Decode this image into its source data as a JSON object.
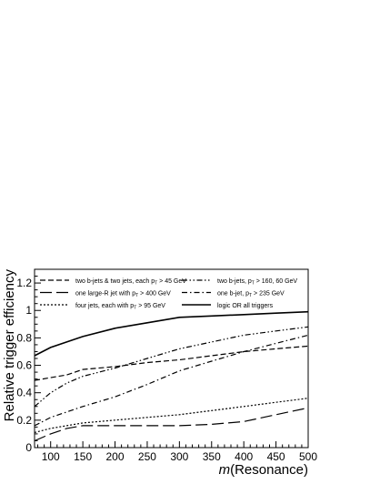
{
  "chart_data": {
    "type": "line",
    "xlabel_italic": "m",
    "xlabel_rest": "(Resonance)",
    "ylabel": "Relative trigger efficiency",
    "xlim": [
      75,
      500
    ],
    "ylim": [
      0,
      1.3
    ],
    "xticks": [
      100,
      150,
      200,
      250,
      300,
      350,
      400,
      450,
      500
    ],
    "yticks": [
      0,
      0.2,
      0.4,
      0.6,
      0.8,
      1,
      1.2
    ],
    "ytick_labels": [
      "0",
      "0.2",
      "0.4",
      "0.6",
      "0.8",
      "1",
      "1.2"
    ],
    "grid": false,
    "legend_position": "top",
    "series": [
      {
        "name": "two b-jets & two jets, each p_T > 45 GeV",
        "legend_main": "two b-jets & two jets, each p",
        "legend_sub": "T",
        "legend_tail": " > 45 GeV",
        "style": "dashed",
        "x": [
          75,
          100,
          125,
          150,
          200,
          250,
          300,
          350,
          400,
          450,
          500
        ],
        "values": [
          0.49,
          0.51,
          0.53,
          0.57,
          0.59,
          0.62,
          0.64,
          0.67,
          0.7,
          0.72,
          0.74
        ]
      },
      {
        "name": "one large-R jet with p_T > 400 GeV",
        "legend_main": "one large-R jet with p",
        "legend_sub": "T",
        "legend_tail": " > 400 GeV",
        "style": "longdash",
        "x": [
          75,
          100,
          125,
          150,
          200,
          250,
          300,
          350,
          400,
          450,
          500
        ],
        "values": [
          0.05,
          0.1,
          0.14,
          0.16,
          0.16,
          0.16,
          0.16,
          0.17,
          0.19,
          0.24,
          0.29
        ]
      },
      {
        "name": "four jets, each with p_T > 95 GeV",
        "legend_main": "four jets, each with p",
        "legend_sub": "T",
        "legend_tail": " > 95 GeV",
        "style": "dotted",
        "x": [
          75,
          100,
          125,
          150,
          200,
          250,
          300,
          350,
          400,
          450,
          500
        ],
        "values": [
          0.11,
          0.14,
          0.16,
          0.18,
          0.2,
          0.22,
          0.24,
          0.27,
          0.3,
          0.33,
          0.36
        ]
      },
      {
        "name": "two b-jets, p_T > 160, 60 GeV",
        "legend_main": "two b-jets, p",
        "legend_sub": "T",
        "legend_tail": " > 160, 60 GeV",
        "style": "dashdotdot",
        "x": [
          75,
          100,
          125,
          150,
          200,
          250,
          300,
          350,
          400,
          450,
          500
        ],
        "values": [
          0.3,
          0.4,
          0.47,
          0.52,
          0.58,
          0.65,
          0.72,
          0.77,
          0.82,
          0.85,
          0.88
        ]
      },
      {
        "name": "one b-jet, p_T > 235 GeV",
        "legend_main": "one b-jet, p",
        "legend_sub": "T",
        "legend_tail": " > 235 GeV",
        "style": "dashdot",
        "x": [
          75,
          100,
          125,
          150,
          200,
          250,
          300,
          350,
          400,
          450,
          500
        ],
        "values": [
          0.16,
          0.22,
          0.26,
          0.3,
          0.37,
          0.46,
          0.56,
          0.63,
          0.7,
          0.76,
          0.82
        ]
      },
      {
        "name": "logic OR all triggers",
        "legend_main": "logic OR all triggers",
        "legend_sub": "",
        "legend_tail": "",
        "style": "solid",
        "x": [
          75,
          100,
          125,
          150,
          200,
          250,
          300,
          350,
          400,
          450,
          500
        ],
        "values": [
          0.67,
          0.73,
          0.77,
          0.81,
          0.87,
          0.91,
          0.95,
          0.96,
          0.97,
          0.98,
          0.99
        ]
      }
    ]
  }
}
